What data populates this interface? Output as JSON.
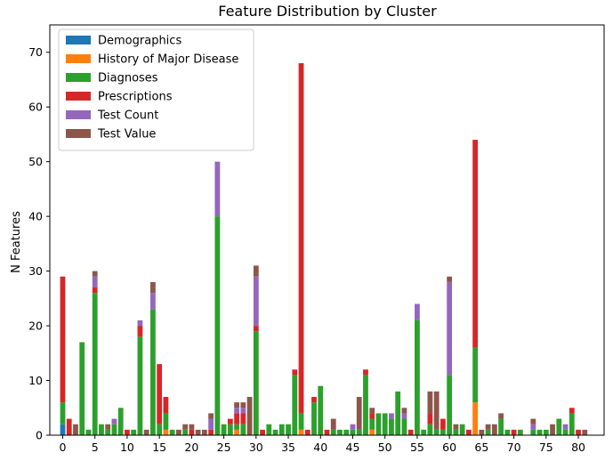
{
  "chart_data": {
    "type": "bar",
    "stacked": true,
    "title": "Feature Distribution by Cluster",
    "xlabel": "",
    "ylabel": "N Features",
    "xlim": [
      -2,
      84
    ],
    "ylim": [
      0,
      75
    ],
    "xticks": [
      0,
      5,
      10,
      15,
      20,
      25,
      30,
      35,
      40,
      45,
      50,
      55,
      60,
      65,
      70,
      75,
      80
    ],
    "yticks": [
      0,
      10,
      20,
      30,
      40,
      50,
      60,
      70
    ],
    "legend_position": "top-left",
    "grid": false,
    "x": [
      0,
      1,
      2,
      3,
      4,
      5,
      6,
      7,
      8,
      9,
      10,
      11,
      12,
      13,
      14,
      15,
      16,
      17,
      18,
      19,
      20,
      21,
      22,
      23,
      24,
      25,
      26,
      27,
      28,
      29,
      30,
      31,
      32,
      33,
      34,
      35,
      36,
      37,
      38,
      39,
      40,
      41,
      42,
      43,
      44,
      45,
      46,
      47,
      48,
      49,
      50,
      51,
      52,
      53,
      54,
      55,
      56,
      57,
      58,
      59,
      60,
      61,
      62,
      63,
      64,
      65,
      66,
      67,
      68,
      69,
      70,
      71,
      72,
      73,
      74,
      75,
      76,
      77,
      78,
      79,
      80,
      81
    ],
    "series": [
      {
        "name": "Demographics",
        "color": "#1f77b4",
        "values": [
          2,
          0,
          0,
          0,
          0,
          0,
          0,
          0,
          0,
          0,
          0,
          0,
          0,
          0,
          0,
          0,
          0,
          0,
          0,
          0,
          0,
          0,
          0,
          0,
          0,
          0,
          0,
          0,
          0,
          0,
          0,
          0,
          0,
          0,
          0,
          0,
          0,
          0,
          0,
          0,
          0,
          0,
          0,
          0,
          0,
          0,
          0,
          0,
          0,
          0,
          0,
          0,
          0,
          0,
          0,
          0,
          0,
          0,
          0,
          0,
          0,
          0,
          0,
          0,
          0,
          0,
          0,
          0,
          0,
          0,
          0,
          0,
          0,
          0,
          0,
          0,
          0,
          0,
          0,
          0,
          0,
          0
        ]
      },
      {
        "name": "History of Major Disease",
        "color": "#ff7f0e",
        "values": [
          0,
          0,
          0,
          0,
          0,
          0,
          0,
          0,
          0,
          0,
          0,
          0,
          0,
          0,
          0,
          0,
          1,
          0,
          0,
          0,
          0,
          0,
          0,
          0,
          0,
          0,
          0,
          1,
          0,
          0,
          0,
          0,
          0,
          0,
          0,
          0,
          0,
          1,
          0,
          0,
          0,
          0,
          0,
          0,
          0,
          0,
          0,
          0,
          1,
          0,
          0,
          0,
          0,
          0,
          0,
          0,
          0,
          0,
          0,
          0,
          0,
          0,
          0,
          0,
          6,
          0,
          0,
          0,
          0,
          0,
          0,
          0,
          0,
          0,
          0,
          0,
          0,
          0,
          0,
          0,
          0,
          0
        ]
      },
      {
        "name": "Diagnoses",
        "color": "#2ca02c",
        "values": [
          4,
          0,
          0,
          17,
          1,
          26,
          2,
          1,
          2,
          5,
          0,
          1,
          18,
          0,
          23,
          2,
          3,
          1,
          0,
          1,
          0,
          0,
          0,
          0,
          40,
          2,
          2,
          1,
          2,
          0,
          19,
          0,
          2,
          1,
          2,
          2,
          11,
          3,
          0,
          6,
          9,
          0,
          1,
          1,
          1,
          1,
          1,
          11,
          2,
          4,
          4,
          3,
          8,
          3,
          0,
          21,
          1,
          2,
          1,
          1,
          11,
          1,
          2,
          0,
          10,
          0,
          1,
          0,
          3,
          1,
          0,
          1,
          0,
          1,
          1,
          1,
          0,
          3,
          1,
          4,
          0,
          0
        ]
      },
      {
        "name": "Prescriptions",
        "color": "#d62728",
        "values": [
          23,
          3,
          0,
          0,
          0,
          1,
          0,
          0,
          0,
          0,
          1,
          0,
          2,
          0,
          0,
          11,
          3,
          0,
          0,
          0,
          1,
          0,
          0,
          1,
          0,
          0,
          1,
          2,
          2,
          0,
          1,
          1,
          0,
          0,
          0,
          0,
          1,
          64,
          1,
          1,
          0,
          1,
          0,
          0,
          0,
          0,
          0,
          1,
          1,
          0,
          0,
          0,
          0,
          0,
          1,
          0,
          0,
          2,
          0,
          2,
          0,
          0,
          0,
          1,
          38,
          0,
          0,
          0,
          0,
          0,
          1,
          0,
          0,
          0,
          0,
          0,
          0,
          0,
          0,
          1,
          1,
          0
        ]
      },
      {
        "name": "Test Count",
        "color": "#9467bd",
        "values": [
          0,
          0,
          0,
          0,
          0,
          2,
          0,
          0,
          1,
          0,
          0,
          0,
          1,
          0,
          3,
          0,
          0,
          0,
          0,
          0,
          0,
          0,
          0,
          2,
          10,
          0,
          0,
          1,
          1,
          0,
          9,
          0,
          0,
          0,
          0,
          0,
          0,
          0,
          0,
          0,
          0,
          0,
          0,
          0,
          0,
          1,
          0,
          0,
          0,
          0,
          0,
          1,
          0,
          1,
          0,
          3,
          0,
          0,
          0,
          0,
          17,
          0,
          0,
          0,
          0,
          0,
          0,
          0,
          0,
          0,
          0,
          0,
          0,
          1,
          0,
          0,
          0,
          0,
          1,
          0,
          0,
          0
        ]
      },
      {
        "name": "Test Value",
        "color": "#8c564b",
        "values": [
          0,
          0,
          2,
          0,
          0,
          1,
          0,
          1,
          0,
          0,
          0,
          0,
          0,
          1,
          2,
          0,
          0,
          0,
          1,
          1,
          1,
          1,
          1,
          1,
          0,
          0,
          0,
          1,
          1,
          7,
          2,
          0,
          0,
          0,
          0,
          0,
          0,
          0,
          0,
          0,
          0,
          0,
          2,
          0,
          0,
          0,
          6,
          0,
          1,
          0,
          0,
          0,
          0,
          1,
          0,
          0,
          0,
          4,
          7,
          0,
          1,
          1,
          0,
          0,
          0,
          1,
          1,
          2,
          1,
          0,
          0,
          0,
          0,
          1,
          0,
          0,
          2,
          0,
          0,
          0,
          0,
          1
        ]
      }
    ]
  }
}
